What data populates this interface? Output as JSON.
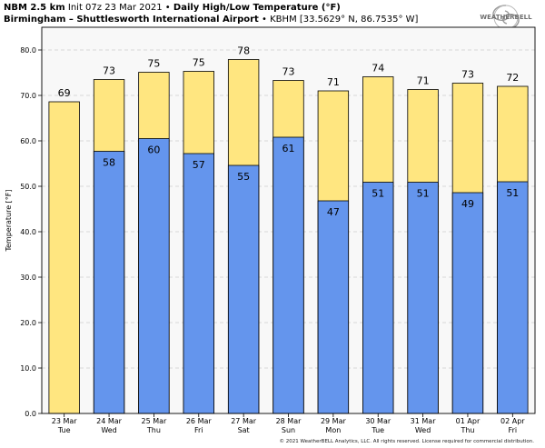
{
  "header": {
    "model": "NBM 2.5 km",
    "init": "Init 07z 23 Mar 2021",
    "product": "Daily High/Low Temperature (°F)",
    "station": "Birmingham – Shuttlesworth International Airport",
    "station_meta": "KBHM [33.5629° N, 86.7535° W]",
    "bullet": "•"
  },
  "logo": {
    "text": "WEATHERBELL"
  },
  "footer": {
    "copyright": "© 2021 WeatherBELL Analytics, LLC. All rights reserved. License required for commercial distribution."
  },
  "colors": {
    "high": "#ffe680",
    "low": "#6495ed",
    "plot_bg": "#f8f8f8",
    "grid": "#cccccc"
  },
  "chart_data": {
    "type": "bar",
    "ylabel": "Temperature [°F]",
    "ylim": [
      0,
      85
    ],
    "yticks": [
      0,
      10,
      20,
      30,
      40,
      50,
      60,
      70,
      80
    ],
    "ytick_labels": [
      "0.0",
      "10.0",
      "20.0",
      "30.0",
      "40.0",
      "50.0",
      "60.0",
      "70.0",
      "80.0"
    ],
    "grid": true,
    "categories": [
      "23 Mar",
      "24 Mar",
      "25 Mar",
      "26 Mar",
      "27 Mar",
      "28 Mar",
      "29 Mar",
      "30 Mar",
      "31 Mar",
      "01 Apr",
      "02 Apr"
    ],
    "weekdays": [
      "Tue",
      "Wed",
      "Thu",
      "Fri",
      "Sat",
      "Sun",
      "Mon",
      "Tue",
      "Wed",
      "Thu",
      "Fri"
    ],
    "series": [
      {
        "values": [
          68.6,
          73.5,
          75.1,
          75.3,
          77.9,
          73.3,
          71.0,
          74.1,
          71.3,
          72.7,
          72.0
        ],
        "labels": [
          "69",
          "73",
          "75",
          "75",
          "78",
          "73",
          "71",
          "74",
          "71",
          "73",
          "72"
        ]
      },
      {
        "values": [
          null,
          57.7,
          60.5,
          57.2,
          54.6,
          60.8,
          46.8,
          50.9,
          50.9,
          48.6,
          51.0
        ],
        "labels": [
          "",
          "58",
          "60",
          "57",
          "55",
          "61",
          "47",
          "51",
          "51",
          "49",
          "51"
        ]
      }
    ]
  }
}
